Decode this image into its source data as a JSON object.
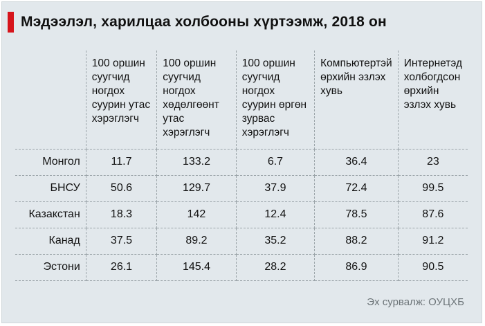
{
  "title": "Мэдээлэл, харилцаа холбооны хүртээмж, 2018 он",
  "table": {
    "headers": [
      "",
      "100 оршин суугчид ногдох суурин утас хэрэглэгч",
      "100 оршин суугчид ногдох хөдөлгөөнт утас хэрэглэгч",
      "100 оршин суугчид ногдох суурин өргөн зурвас хэрэглэгч",
      "Компьютертэй өрхийн эзлэх хувь",
      "Интернетэд холбогдсон өрхийн эзлэх хувь"
    ],
    "rows": [
      [
        "Монгол",
        "11.7",
        "133.2",
        "6.7",
        "36.4",
        "23"
      ],
      [
        "БНСУ",
        "50.6",
        "129.7",
        "37.9",
        "72.4",
        "99.5"
      ],
      [
        "Казакстан",
        "18.3",
        "142",
        "12.4",
        "78.5",
        "87.6"
      ],
      [
        "Канад",
        "37.5",
        "89.2",
        "35.2",
        "88.2",
        "91.2"
      ],
      [
        "Эстони",
        "26.1",
        "145.4",
        "28.2",
        "86.9",
        "90.5"
      ]
    ]
  },
  "source": "Эх сурвалж: ОУЦХБ",
  "colors": {
    "accent": "#d6141b",
    "background": "#e2e8ec",
    "source_text": "#6c7478"
  }
}
